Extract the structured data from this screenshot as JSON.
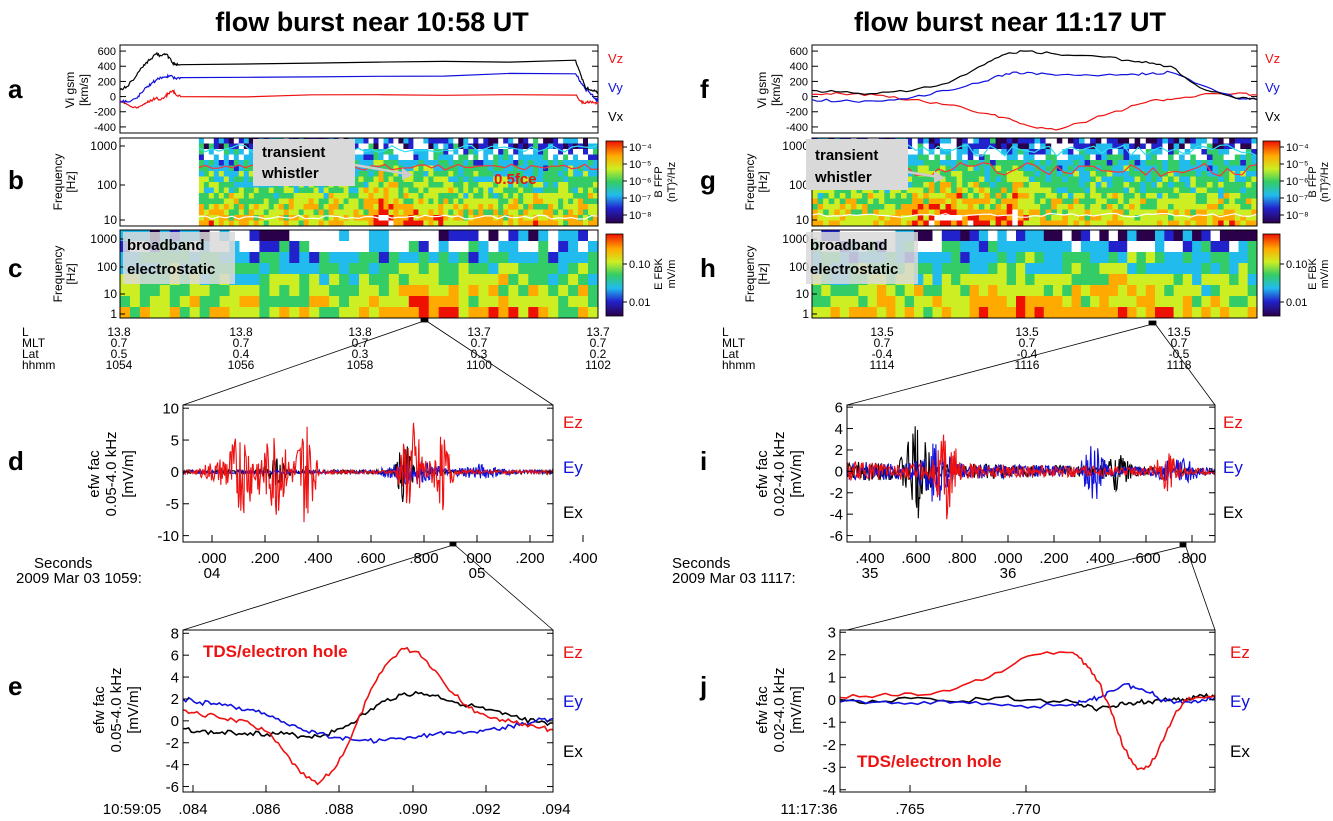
{
  "titles": {
    "left": "flow burst near 10:58 UT",
    "right": "flow burst near 11:17 UT"
  },
  "panel_letters": [
    "a",
    "b",
    "c",
    "d",
    "e",
    "f",
    "g",
    "h",
    "i",
    "j"
  ],
  "labels": {
    "vi_gsm": "Vi gsm",
    "vi_units": "[km/s]",
    "frequency": "Frequency",
    "hz": "[Hz]",
    "bffp_1": "B FFP",
    "bffp_2": "(nT)²/Hz",
    "efbk_1": "E FBK",
    "efbk_2": "mV/m",
    "efw_1": "efw fac",
    "efw_range_left": "0.05-4.0 kHz",
    "efw_range_right": "0.02-4.0 kHz",
    "mvm": "[mV/m]",
    "vz": "Vz",
    "vy": "Vy",
    "vx": "Vx",
    "ez": "Ez",
    "ey": "Ey",
    "ex": "Ex",
    "transient_1": "transient",
    "transient_2": "whistler",
    "fce": "0.5fce",
    "broadband_1": "broadband",
    "broadband_2": "electrostatic",
    "tds": "TDS/electron hole",
    "seconds": "Seconds",
    "date_left": "2009 Mar 03 1059:",
    "date_right": "2009 Mar 03 1117:"
  },
  "orbit": {
    "row_labels": [
      "L",
      "MLT",
      "Lat",
      "hhmm"
    ],
    "left": [
      {
        "L": "13.8",
        "MLT": "0.7",
        "Lat": "0.5",
        "hhmm": "1054"
      },
      {
        "L": "13.8",
        "MLT": "0.7",
        "Lat": "0.4",
        "hhmm": "1056"
      },
      {
        "L": "13.8",
        "MLT": "0.7",
        "Lat": "0.3",
        "hhmm": "1058"
      },
      {
        "L": "13.7",
        "MLT": "0.7",
        "Lat": "0.3",
        "hhmm": "1100"
      },
      {
        "L": "13.7",
        "MLT": "0.7",
        "Lat": "0.2",
        "hhmm": "1102"
      }
    ],
    "right": [
      {
        "L": "13.5",
        "MLT": "0.7",
        "Lat": "-0.4",
        "hhmm": "1114"
      },
      {
        "L": "13.5",
        "MLT": "0.7",
        "Lat": "-0.4",
        "hhmm": "1116"
      },
      {
        "L": "13.5",
        "MLT": "0.7",
        "Lat": "-0.5",
        "hhmm": "1118"
      }
    ]
  },
  "colors": {
    "x": "#000000",
    "y": "#1111dd",
    "z": "#ee1111",
    "cyan": "#33ddee"
  },
  "chart_data": [
    {
      "id": "a",
      "type": "line",
      "ylabel": "Vi gsm [km/s]",
      "yticks": [
        600,
        400,
        200,
        0,
        -200,
        -400
      ],
      "ylim": [
        -480,
        680
      ],
      "x": [
        1053.3,
        1054,
        1055,
        1055.5,
        1056,
        1056.5,
        1057,
        1057.5,
        1058,
        1058.3,
        1058.7,
        1059,
        1059.5,
        1100,
        1100.5,
        1101,
        1101.5,
        1102,
        1102.3
      ],
      "series": [
        {
          "name": "Vx",
          "values": [
            90,
            130,
            280,
            380,
            450,
            500,
            560,
            540,
            560,
            520,
            440,
            430,
            420,
            480,
            300,
            120,
            90,
            70,
            60
          ]
        },
        {
          "name": "Vy",
          "values": [
            -60,
            -70,
            -20,
            50,
            120,
            170,
            220,
            250,
            260,
            270,
            260,
            240,
            250,
            300,
            200,
            100,
            40,
            -20,
            -60
          ]
        },
        {
          "name": "Vz",
          "values": [
            -60,
            -100,
            -150,
            -120,
            -80,
            -50,
            -20,
            -40,
            10,
            40,
            80,
            30,
            0,
            20,
            -60,
            -90,
            -60,
            -80,
            -90
          ]
        }
      ]
    },
    {
      "id": "b",
      "type": "heatmap",
      "ylabel": "Frequency [Hz]",
      "ytick_labels": [
        "1000",
        "100",
        "10"
      ],
      "colorbar_ticks": [
        "10⁻⁴",
        "10⁻⁵",
        "10⁻⁶",
        "10⁻⁷",
        "10⁻⁸"
      ],
      "colorbar_label": "B FFP (nT)²/Hz"
    },
    {
      "id": "c",
      "type": "heatmap",
      "ylabel": "Frequency [Hz]",
      "ytick_labels": [
        "1000",
        "100",
        "10",
        "1"
      ],
      "colorbar_ticks": [
        "0.10",
        "0.01"
      ],
      "colorbar_label": "E FBK mV/m"
    },
    {
      "id": "d",
      "type": "line",
      "ylabel": "efw fac 0.05-4.0 kHz [mV/m]",
      "yticks": [
        10,
        5,
        0,
        -5,
        -10
      ],
      "ylim": [
        -11,
        10.5
      ],
      "xtick_labels": [
        ".000",
        ".200",
        ".400",
        ".600",
        ".800",
        ".000",
        ".200",
        ".400"
      ],
      "xtick_sub": {
        "0": "04",
        "5": "05"
      },
      "series": [
        {
          "name": "Ez"
        },
        {
          "name": "Ey"
        },
        {
          "name": "Ex"
        }
      ]
    },
    {
      "id": "e",
      "type": "line",
      "ylabel": "efw fac 0.05-4.0 kHz [mV/m]",
      "yticks": [
        8,
        6,
        4,
        2,
        0,
        -2,
        -4,
        -6
      ],
      "ylim": [
        -6.5,
        8.3
      ],
      "xtick_labels": [
        "10:59:05",
        ".084",
        ".086",
        ".088",
        ".090",
        ".092",
        ".094"
      ],
      "x": [
        0.0835,
        0.084,
        0.0845,
        0.085,
        0.0855,
        0.086,
        0.0865,
        0.087,
        0.0875,
        0.088,
        0.0885,
        0.089,
        0.0895,
        0.09,
        0.0905,
        0.091,
        0.0915,
        0.092,
        0.0925,
        0.093,
        0.0935,
        0.094,
        0.0945
      ],
      "series": [
        {
          "name": "Ez",
          "values": [
            1.0,
            0.6,
            0.4,
            0.1,
            -0.3,
            -1.0,
            -2.8,
            -4.8,
            -5.8,
            -4.4,
            -1.5,
            2.2,
            5.0,
            6.6,
            6.3,
            4.6,
            2.6,
            1.2,
            0.5,
            0.1,
            -0.3,
            -0.6,
            -0.8
          ]
        },
        {
          "name": "Ey",
          "values": [
            2.0,
            1.7,
            1.5,
            1.3,
            1.0,
            0.5,
            -0.1,
            -0.7,
            -1.2,
            -1.5,
            -1.7,
            -1.8,
            -1.8,
            -1.6,
            -1.4,
            -1.2,
            -1.1,
            -1.0,
            -0.8,
            -0.6,
            -0.4,
            0.0,
            0.2
          ]
        },
        {
          "name": "Ex",
          "values": [
            -0.7,
            -1.0,
            -1.1,
            -1.1,
            -1.1,
            -1.2,
            -1.2,
            -1.4,
            -1.4,
            -1.0,
            -0.2,
            0.8,
            1.8,
            2.4,
            2.5,
            2.3,
            1.8,
            1.4,
            1.0,
            0.6,
            0.2,
            -0.1,
            -0.2
          ]
        }
      ]
    },
    {
      "id": "f",
      "type": "line",
      "ylabel": "Vi gsm [km/s]",
      "yticks": [
        600,
        400,
        200,
        0,
        -200,
        -400
      ],
      "ylim": [
        -480,
        680
      ],
      "x": [
        1112.6,
        1113,
        1113.5,
        1114,
        1114.5,
        1115,
        1115.3,
        1115.6,
        1116,
        1116.5,
        1117,
        1117.3,
        1117.6,
        1118,
        1118.5,
        1118.8
      ],
      "series": [
        {
          "name": "Vx",
          "values": [
            80,
            60,
            40,
            80,
            180,
            420,
            560,
            600,
            560,
            540,
            480,
            440,
            400,
            120,
            -20,
            -40
          ]
        },
        {
          "name": "Vy",
          "values": [
            -40,
            -60,
            -60,
            -10,
            80,
            200,
            300,
            320,
            280,
            280,
            290,
            300,
            320,
            160,
            -20,
            -40
          ]
        },
        {
          "name": "Vz",
          "values": [
            30,
            40,
            20,
            -40,
            -110,
            -220,
            -280,
            -380,
            -440,
            -300,
            -150,
            -60,
            -40,
            20,
            40,
            20
          ]
        }
      ]
    },
    {
      "id": "g",
      "type": "heatmap",
      "ylabel": "Frequency [Hz]",
      "ytick_labels": [
        "1000",
        "100",
        "10"
      ],
      "colorbar_ticks": [
        "10⁻⁴",
        "10⁻⁵",
        "10⁻⁶",
        "10⁻⁷",
        "10⁻⁸"
      ],
      "colorbar_label": "B FFP (nT)²/Hz"
    },
    {
      "id": "h",
      "type": "heatmap",
      "ylabel": "Frequency [Hz]",
      "ytick_labels": [
        "1000",
        "100",
        "10",
        "1"
      ],
      "colorbar_ticks": [
        "0.10",
        "0.01"
      ],
      "colorbar_label": "E FBK mV/m"
    },
    {
      "id": "i",
      "type": "line",
      "ylabel": "efw fac 0.02-4.0 kHz [mV/m]",
      "yticks": [
        6,
        4,
        2,
        0,
        -2,
        -4,
        -6
      ],
      "ylim": [
        -6.6,
        6.2
      ],
      "xtick_labels": [
        ".400",
        ".600",
        ".800",
        ".000",
        ".200",
        ".400",
        ".600",
        ".800"
      ],
      "xtick_sub": {
        "0": "35",
        "3": "36"
      },
      "series": [
        {
          "name": "Ez"
        },
        {
          "name": "Ey"
        },
        {
          "name": "Ex"
        }
      ]
    },
    {
      "id": "j",
      "type": "line",
      "ylabel": "efw fac 0.02-4.0 kHz [mV/m]",
      "yticks": [
        3,
        2,
        1,
        0,
        -1,
        -2,
        -3,
        -4
      ],
      "ylim": [
        -4.1,
        3.1
      ],
      "xtick_labels": [
        "11:17:36",
        ".765",
        ".770"
      ],
      "x": [
        0.7585,
        0.76,
        0.7615,
        0.763,
        0.7645,
        0.766,
        0.7675,
        0.768,
        0.7685,
        0.769,
        0.7695,
        0.77,
        0.7705,
        0.771,
        0.7715,
        0.772,
        0.7725,
        0.773
      ],
      "series": [
        {
          "name": "Ez",
          "values": [
            0.1,
            0.2,
            0.2,
            0.5,
            1.2,
            2.0,
            2.1,
            1.6,
            0.8,
            -0.6,
            -2.2,
            -3.1,
            -2.9,
            -1.8,
            -0.5,
            0.1,
            0.1,
            0.2
          ]
        },
        {
          "name": "Ey",
          "values": [
            -0.1,
            -0.1,
            -0.2,
            -0.1,
            -0.2,
            -0.3,
            -0.2,
            -0.1,
            0.1,
            0.4,
            0.7,
            0.5,
            0.3,
            0.0,
            -0.1,
            -0.1,
            0.0,
            0.1
          ]
        },
        {
          "name": "Ex",
          "values": [
            0.0,
            -0.1,
            0.1,
            -0.1,
            0.1,
            0.0,
            -0.1,
            -0.3,
            -0.4,
            -0.3,
            -0.2,
            -0.1,
            -0.1,
            0.0,
            0.0,
            0.0,
            0.2,
            0.1
          ]
        }
      ]
    }
  ]
}
